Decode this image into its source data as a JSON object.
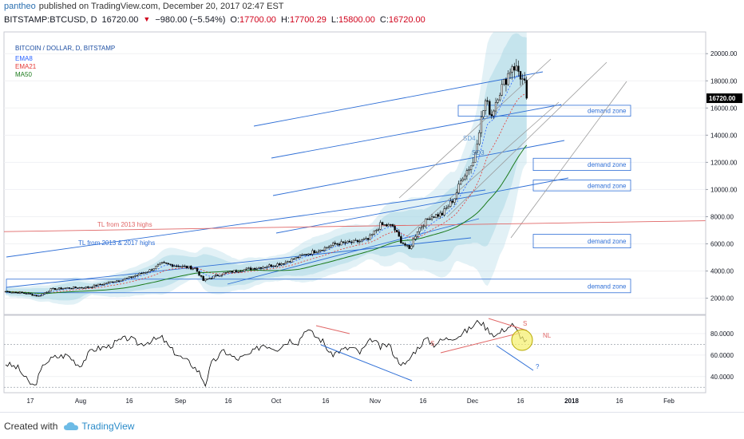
{
  "header": {
    "author": "pantheo",
    "published_text": "published on TradingView.com, December 20, 2017 02:47 EST",
    "symbol": "BITSTAMP:BTCUSD, D",
    "last": "16720.00",
    "change": "−980.00 (−5.54%)",
    "open_label": "O:",
    "open": "17700.00",
    "high_label": "H:",
    "high": "17700.29",
    "low_label": "L:",
    "low": "15800.00",
    "close_label": "C:",
    "close": "16720.00"
  },
  "legend": {
    "title": "BITCOIN / DOLLAR, D, BITSTAMP",
    "ema8": "EMA8",
    "ema21": "EMA21",
    "ma50": "MA50"
  },
  "colors": {
    "ema8": "#2962ff",
    "ema21": "#e53935",
    "ma50": "#1b7a1b",
    "band": "#add8e6",
    "trendline": "#2f6fd6",
    "resistance": "#e06666",
    "price_tag_bg": "#000000"
  },
  "chart_data": [
    {
      "type": "candlestick",
      "title": "BITCOIN / DOLLAR, D, BITSTAMP",
      "y_axis": {
        "ticks": [
          2000,
          4000,
          6000,
          8000,
          10000,
          12000,
          14000,
          16000,
          18000,
          20000
        ],
        "tick_labels": [
          "2000.00",
          "4000.00",
          "6000.00",
          "8000.00",
          "10000.00",
          "12000.00",
          "14000.00",
          "16000.00",
          "18000.00",
          "20000.00"
        ],
        "range": [
          800,
          21600
        ],
        "current_price_label": "16720.00"
      },
      "x_axis": {
        "tick_labels": [
          "17",
          "Aug",
          "16",
          "Sep",
          "16",
          "Oct",
          "16",
          "Nov",
          "16",
          "Dec",
          "16",
          "2018",
          "16",
          "Feb"
        ]
      },
      "series": [
        {
          "name": "EMA8"
        },
        {
          "name": "EMA21"
        },
        {
          "name": "MA50"
        }
      ],
      "price_path": [
        [
          0,
          2500
        ],
        [
          10,
          2350
        ],
        [
          16,
          2150
        ],
        [
          22,
          2650
        ],
        [
          30,
          2750
        ],
        [
          40,
          2800
        ],
        [
          50,
          3150
        ],
        [
          60,
          3500
        ],
        [
          70,
          4050
        ],
        [
          76,
          4550
        ],
        [
          85,
          4350
        ],
        [
          92,
          4200
        ],
        [
          96,
          3300
        ],
        [
          105,
          3800
        ],
        [
          115,
          4100
        ],
        [
          125,
          4300
        ],
        [
          135,
          4600
        ],
        [
          145,
          5200
        ],
        [
          155,
          5700
        ],
        [
          160,
          6000
        ],
        [
          168,
          6100
        ],
        [
          176,
          6300
        ],
        [
          182,
          7400
        ],
        [
          188,
          7300
        ],
        [
          192,
          6200
        ],
        [
          196,
          5600
        ],
        [
          200,
          7000
        ],
        [
          206,
          8000
        ],
        [
          212,
          8200
        ],
        [
          218,
          9400
        ],
        [
          222,
          11000
        ],
        [
          227,
          12000
        ],
        [
          230,
          14500
        ],
        [
          233,
          16500
        ],
        [
          236,
          15500
        ],
        [
          239,
          17000
        ],
        [
          242,
          17800
        ],
        [
          246,
          19200
        ],
        [
          249,
          18700
        ],
        [
          252,
          17700
        ],
        [
          253,
          16720
        ]
      ],
      "annotations": [
        {
          "text": "TL from 2013 highs"
        },
        {
          "text": "TL from 2013 & 2017 highs"
        },
        {
          "text": "SD4"
        },
        {
          "text": "SD3"
        }
      ],
      "zones": [
        {
          "label": "demand zone",
          "from": 15400,
          "to": 16200
        },
        {
          "label": "demand zone",
          "from": 11400,
          "to": 12300
        },
        {
          "label": "demand zone",
          "from": 9900,
          "to": 10700
        },
        {
          "label": "demand zone",
          "from": 5700,
          "to": 6700
        },
        {
          "label": "demand zone",
          "from": 2400,
          "to": 3400
        }
      ]
    },
    {
      "type": "line",
      "name": "RSI",
      "y_axis": {
        "ticks": [
          40,
          60,
          80
        ],
        "tick_labels": [
          "40.0000",
          "60.0000",
          "80.0000"
        ],
        "range": [
          25,
          97
        ]
      },
      "values": [
        [
          0,
          52
        ],
        [
          6,
          48
        ],
        [
          11,
          35
        ],
        [
          14,
          31
        ],
        [
          19,
          53
        ],
        [
          24,
          58
        ],
        [
          30,
          60
        ],
        [
          36,
          50
        ],
        [
          42,
          65
        ],
        [
          50,
          68
        ],
        [
          56,
          74
        ],
        [
          60,
          76
        ],
        [
          65,
          70
        ],
        [
          70,
          73
        ],
        [
          76,
          76
        ],
        [
          80,
          66
        ],
        [
          85,
          58
        ],
        [
          90,
          52
        ],
        [
          94,
          44
        ],
        [
          97,
          33
        ],
        [
          100,
          52
        ],
        [
          106,
          64
        ],
        [
          112,
          56
        ],
        [
          118,
          60
        ],
        [
          125,
          70
        ],
        [
          132,
          66
        ],
        [
          138,
          74
        ],
        [
          142,
          72
        ],
        [
          146,
          85
        ],
        [
          150,
          78
        ],
        [
          154,
          73
        ],
        [
          158,
          60
        ],
        [
          162,
          64
        ],
        [
          168,
          67
        ],
        [
          172,
          62
        ],
        [
          178,
          75
        ],
        [
          182,
          67
        ],
        [
          186,
          70
        ],
        [
          190,
          56
        ],
        [
          194,
          50
        ],
        [
          198,
          62
        ],
        [
          204,
          75
        ],
        [
          208,
          70
        ],
        [
          212,
          74
        ],
        [
          216,
          76
        ],
        [
          220,
          78
        ],
        [
          225,
          84
        ],
        [
          230,
          92
        ],
        [
          234,
          84
        ],
        [
          238,
          78
        ],
        [
          242,
          84
        ],
        [
          246,
          88
        ],
        [
          250,
          78
        ],
        [
          253,
          72
        ]
      ],
      "annotations": [
        {
          "text": "S"
        },
        {
          "text": "S"
        },
        {
          "text": "NL"
        },
        {
          "text": "?"
        }
      ]
    }
  ],
  "footer": {
    "created_with": "Created with",
    "brand": "TradingView"
  }
}
